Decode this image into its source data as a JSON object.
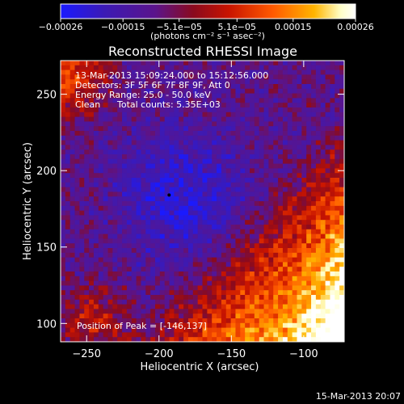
{
  "chart_data": {
    "type": "heatmap",
    "title": "Reconstructed RHESSI Image",
    "xlabel": "Heliocentric X (arcsec)",
    "ylabel": "Heliocentric Y (arcsec)",
    "xlim": [
      -268,
      -72
    ],
    "ylim": [
      88,
      272
    ],
    "x_ticks": [
      -250,
      -200,
      -150,
      -100
    ],
    "x_tick_labels": [
      "−250",
      "−200",
      "−150",
      "−100"
    ],
    "y_ticks": [
      100,
      150,
      200,
      250
    ],
    "y_tick_labels": [
      "100",
      "150",
      "200",
      "250"
    ],
    "colorbar": {
      "range": [
        -0.00026,
        0.00026
      ],
      "ticks": [
        -0.00026,
        -0.00015,
        -5.1e-05,
        5.1e-05,
        0.00015,
        0.00026
      ],
      "tick_labels": [
        "−0.00026",
        "−0.00015",
        "−5.1e−05",
        "5.1e−05",
        "0.00015",
        "0.00026"
      ],
      "units": "(photons cm⁻² s⁻¹ asec⁻²)",
      "colormap": [
        "#1a1aff",
        "#3c1ab4",
        "#5a148c",
        "#8a0a1e",
        "#c81400",
        "#ff5a00",
        "#ffb400",
        "#ffffc8",
        "#ffffff"
      ]
    },
    "annotations": {
      "time_range": "13-Mar-2013 15:09:24.000 to 15:12:56.000",
      "detectors": "Detectors: 3F 5F 6F 7F 8F 9F, Att 0",
      "energy_range": "Energy Range: 25.0 - 50.0 keV",
      "method": "Clean",
      "total_counts": "Total counts: 5.35E+03",
      "peak_position": "Position of Peak = [-146,137]"
    },
    "peak_position": [
      -146,
      137
    ],
    "timestamp_footer": "15-Mar-2013 20:07"
  }
}
